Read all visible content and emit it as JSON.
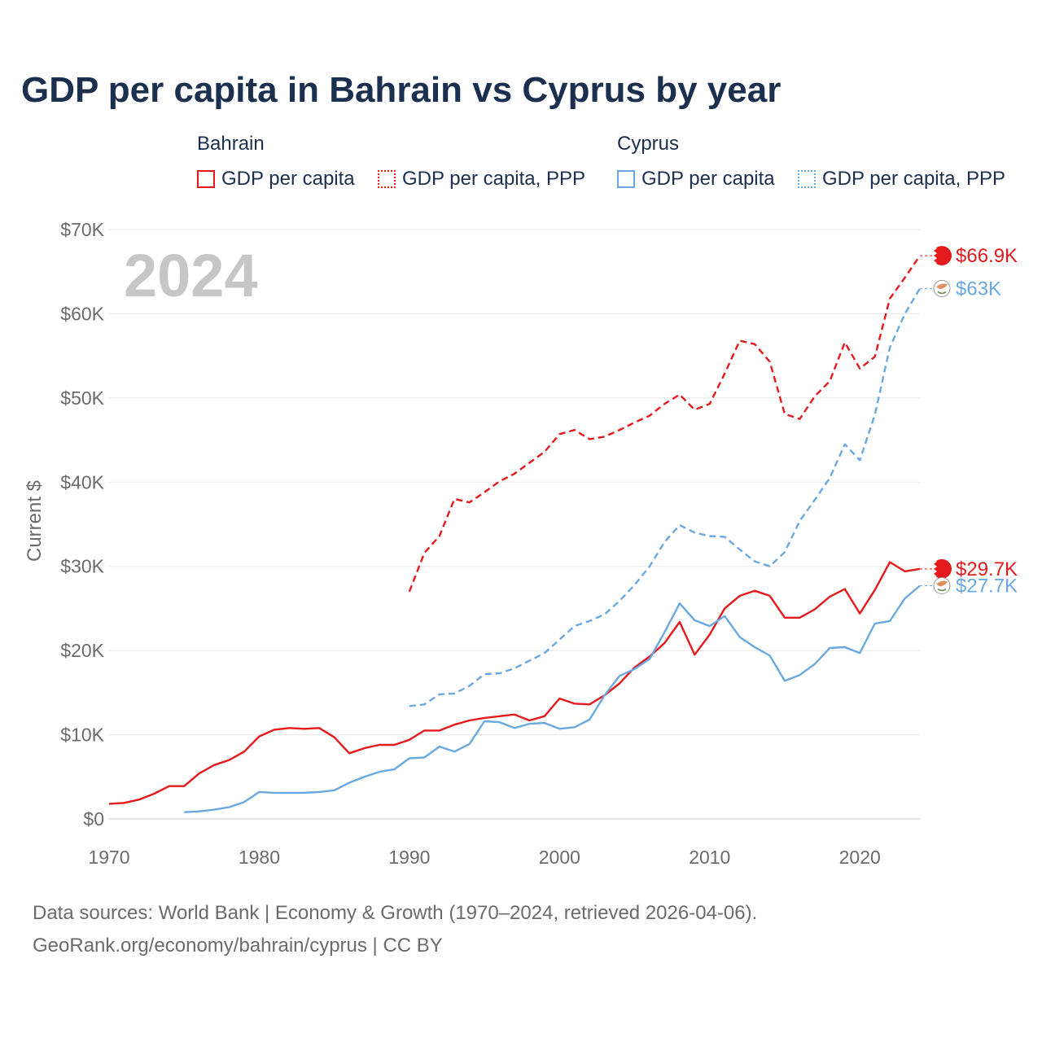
{
  "title": "GDP per capita in Bahrain vs Cyprus by year",
  "watermark_year": "2024",
  "legend": {
    "groups": [
      {
        "name": "Bahrain",
        "color": "#e41a1c",
        "items": [
          {
            "label": "GDP per capita",
            "style": "solid"
          },
          {
            "label": "GDP per capita, PPP",
            "style": "dotted"
          }
        ]
      },
      {
        "name": "Cyprus",
        "color": "#6aa8e0",
        "items": [
          {
            "label": "GDP per capita",
            "style": "solid"
          },
          {
            "label": "GDP per capita, PPP",
            "style": "dotted"
          }
        ]
      }
    ]
  },
  "footer": {
    "line1": "Data sources: World Bank | Economy & Growth (1970–2024, retrieved 2026-04-06).",
    "line2": "GeoRank.org/economy/bahrain/cyprus | CC BY"
  },
  "chart_data": {
    "type": "line",
    "title": "GDP per capita in Bahrain vs Cyprus by year",
    "xlabel": "",
    "ylabel": "Current $",
    "xlim": [
      1970,
      2024
    ],
    "ylim": [
      0,
      70000
    ],
    "x_ticks": [
      1970,
      1980,
      1990,
      2000,
      2010,
      2020
    ],
    "x_tick_labels": [
      "1970",
      "1980",
      "1990",
      "2000",
      "2010",
      "2020"
    ],
    "y_ticks": [
      0,
      10000,
      20000,
      30000,
      40000,
      50000,
      60000,
      70000
    ],
    "y_tick_labels": [
      "$0",
      "$10K",
      "$20K",
      "$30K",
      "$40K",
      "$50K",
      "$60K",
      "$70K"
    ],
    "grid": true,
    "series": [
      {
        "name": "Bahrain GDP per capita",
        "country": "Bahrain",
        "color": "#e41a1c",
        "dash": "solid",
        "end_label": "$29.7K",
        "start_year": 1970,
        "values": [
          1800,
          1900,
          2300,
          3000,
          3900,
          3900,
          5400,
          6400,
          7000,
          8000,
          9800,
          10600,
          10800,
          10700,
          10800,
          9700,
          7800,
          8400,
          8800,
          8800,
          9400,
          10500,
          10500,
          11200,
          11700,
          12000,
          12200,
          12400,
          11700,
          12200,
          14300,
          13700,
          13600,
          14700,
          16100,
          18000,
          19300,
          20900,
          23400,
          19500,
          21900,
          25000,
          26500,
          27100,
          26500,
          23900,
          23900,
          24900,
          26400,
          27300,
          24400,
          27200,
          30500,
          29400,
          29700
        ]
      },
      {
        "name": "Bahrain GDP per capita, PPP",
        "country": "Bahrain",
        "color": "#e41a1c",
        "dash": "dashed",
        "end_label": "$66.9K",
        "start_year": 1990,
        "values": [
          27000,
          31600,
          33600,
          38000,
          37600,
          38800,
          40100,
          41000,
          42300,
          43600,
          45700,
          46200,
          45100,
          45400,
          46200,
          47100,
          47900,
          49300,
          50400,
          48600,
          49300,
          52900,
          56800,
          56400,
          54300,
          48100,
          47500,
          50200,
          52000,
          56600,
          53500,
          54900,
          61800,
          64300,
          66900
        ]
      },
      {
        "name": "Cyprus GDP per capita",
        "country": "Cyprus",
        "color": "#6aa8e0",
        "dash": "solid",
        "end_label": "$27.7K",
        "start_year": 1975,
        "values": [
          800,
          900,
          1100,
          1400,
          2000,
          3200,
          3100,
          3100,
          3100,
          3200,
          3400,
          4300,
          5000,
          5600,
          5900,
          7200,
          7300,
          8600,
          8000,
          8900,
          11600,
          11500,
          10800,
          11300,
          11400,
          10700,
          10900,
          11800,
          14700,
          17000,
          17800,
          19000,
          22200,
          25600,
          23600,
          22900,
          24100,
          21600,
          20400,
          19400,
          16400,
          17100,
          18400,
          20300,
          20400,
          19700,
          23200,
          23500,
          26200,
          27700
        ]
      },
      {
        "name": "Cyprus GDP per capita, PPP",
        "country": "Cyprus",
        "color": "#6aa8e0",
        "dash": "dashed",
        "end_label": "$63K",
        "start_year": 1990,
        "values": [
          13400,
          13600,
          14800,
          14900,
          15800,
          17200,
          17300,
          17900,
          18800,
          19700,
          21300,
          22900,
          23500,
          24300,
          25900,
          27800,
          30000,
          32900,
          34900,
          34000,
          33600,
          33500,
          32000,
          30600,
          30000,
          31700,
          35400,
          37900,
          40500,
          44500,
          42600,
          48000,
          56000,
          60000,
          63000
        ]
      }
    ]
  }
}
